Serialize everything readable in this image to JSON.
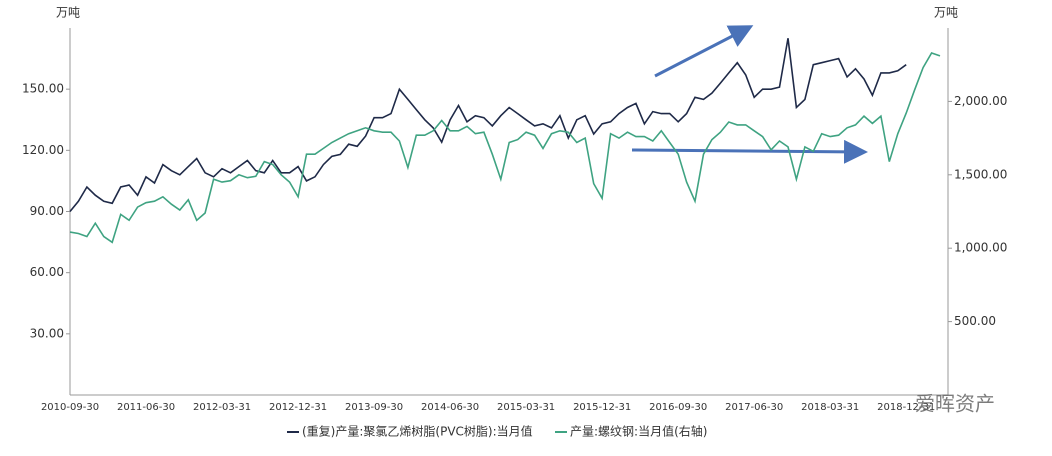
{
  "chart_data": {
    "type": "line",
    "y_unit": "万吨",
    "y2_unit": "万吨",
    "categories": [
      "2010-09-30",
      null,
      null,
      null,
      null,
      null,
      null,
      null,
      null,
      "2011-06-30",
      null,
      null,
      null,
      null,
      null,
      null,
      null,
      null,
      "2012-03-31",
      null,
      null,
      null,
      null,
      null,
      null,
      null,
      null,
      "2012-12-31",
      null,
      null,
      null,
      null,
      null,
      null,
      null,
      null,
      "2013-09-30",
      null,
      null,
      null,
      null,
      null,
      null,
      null,
      null,
      "2014-06-30",
      null,
      null,
      null,
      null,
      null,
      null,
      null,
      null,
      "2015-03-31",
      null,
      null,
      null,
      null,
      null,
      null,
      null,
      null,
      "2015-12-31",
      null,
      null,
      null,
      null,
      null,
      null,
      null,
      null,
      "2016-09-30",
      null,
      null,
      null,
      null,
      null,
      null,
      null,
      null,
      "2017-06-30",
      null,
      null,
      null,
      null,
      null,
      null,
      null,
      null,
      "2018-03-31",
      null,
      null,
      null,
      null,
      null,
      null,
      null,
      null,
      "2018-12-31",
      null,
      null,
      null,
      null
    ],
    "series": [
      {
        "name": "(重复)产量:聚氯乙烯树脂(PVC树脂):当月值",
        "color": "#1f2a48",
        "values": [
          90,
          95,
          102,
          98,
          95,
          94,
          102,
          103,
          98,
          107,
          104,
          113,
          110,
          108,
          112,
          116,
          109,
          107,
          111,
          109,
          112,
          115,
          110,
          109,
          115,
          109,
          109,
          112,
          105,
          107,
          113,
          117,
          118,
          123,
          122,
          127,
          136,
          136,
          138,
          150,
          145,
          140,
          135,
          131,
          124,
          135,
          142,
          134,
          137,
          136,
          132,
          137,
          141,
          138,
          135,
          132,
          133,
          131,
          137,
          126,
          135,
          137,
          128,
          133,
          134,
          138,
          141,
          143,
          133,
          139,
          138,
          138,
          134,
          138,
          146,
          145,
          148,
          153,
          158,
          163,
          157,
          146,
          150,
          150,
          151,
          175,
          141,
          145,
          162,
          163,
          164,
          165,
          156,
          160,
          155,
          147,
          158,
          158,
          159,
          162,
          null,
          null,
          null,
          null
        ]
      },
      {
        "name": "产量:螺纹钢:当月值(右轴)",
        "color": "#3fa382",
        "axis": "y2",
        "values": [
          1110,
          1100,
          1080,
          1170,
          1080,
          1040,
          1230,
          1190,
          1280,
          1310,
          1320,
          1350,
          1300,
          1260,
          1330,
          1190,
          1240,
          1470,
          1450,
          1460,
          1500,
          1480,
          1490,
          1590,
          1570,
          1500,
          1450,
          1350,
          1640,
          1640,
          1680,
          1720,
          1750,
          1780,
          1800,
          1820,
          1800,
          1790,
          1790,
          1730,
          1550,
          1770,
          1770,
          1800,
          1870,
          1800,
          1800,
          1830,
          1780,
          1790,
          1640,
          1470,
          1720,
          1740,
          1790,
          1770,
          1680,
          1780,
          1800,
          1790,
          1720,
          1750,
          1440,
          1340,
          1780,
          1750,
          1790,
          1760,
          1760,
          1730,
          1800,
          1720,
          1640,
          1450,
          1320,
          1640,
          1740,
          1790,
          1860,
          1840,
          1840,
          1800,
          1760,
          1670,
          1730,
          1690,
          1470,
          1690,
          1660,
          1780,
          1760,
          1770,
          1820,
          1840,
          1900,
          1850,
          1900,
          1590,
          1780,
          1920,
          2080,
          2230,
          2330,
          2310
        ]
      }
    ],
    "ylim": [
      0,
      180
    ],
    "yticks": [
      {
        "value": 30,
        "label": "30.00"
      },
      {
        "value": 60,
        "label": "60.00"
      },
      {
        "value": 90,
        "label": "90.00"
      },
      {
        "value": 120,
        "label": "120.00"
      },
      {
        "value": 150,
        "label": "150.00"
      }
    ],
    "y2lim": [
      0,
      2500
    ],
    "y2ticks": [
      {
        "value": 500,
        "label": "500.00"
      },
      {
        "value": 1000,
        "label": "1,000.00"
      },
      {
        "value": 1500,
        "label": "1,500.00"
      },
      {
        "value": 2000,
        "label": "2,000.00"
      }
    ],
    "grid": false,
    "legend": "bottom"
  },
  "watermark": "爱晖资产"
}
